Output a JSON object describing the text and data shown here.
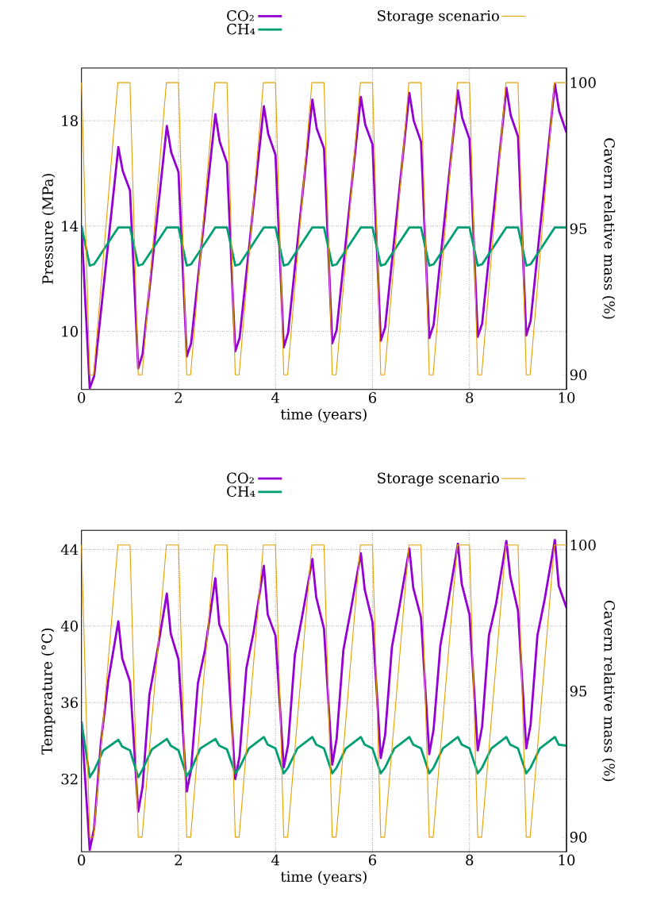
{
  "chart_data": [
    {
      "type": "line",
      "xlabel": "time (years)",
      "ylabel": "Pressure (MPa)",
      "y2label": "Cavern relative mass (%)",
      "xlim": [
        0,
        10
      ],
      "xticks": [
        0,
        2,
        4,
        6,
        8,
        10
      ],
      "ylim": [
        7.8,
        20
      ],
      "yticks": [
        10,
        14,
        18
      ],
      "y2lim": [
        89.5,
        100.5
      ],
      "y2ticks": [
        90,
        95,
        100
      ],
      "grid": true,
      "legend": "top",
      "series": [
        {
          "name": "CO₂",
          "color": "#9400d3",
          "x": [
            0,
            0.17,
            0.26,
            0.76,
            0.85,
            1,
            1.17,
            1.26,
            1.76,
            1.85,
            2,
            2.17,
            2.26,
            2.76,
            2.85,
            3,
            3.17,
            3.26,
            3.76,
            3.85,
            4,
            4.17,
            4.26,
            4.76,
            4.85,
            5,
            5.17,
            5.26,
            5.76,
            5.85,
            6,
            6.17,
            6.26,
            6.76,
            6.85,
            7,
            7.17,
            7.26,
            7.76,
            7.85,
            8,
            8.17,
            8.26,
            8.76,
            8.85,
            9,
            9.17,
            9.26,
            9.76,
            9.85,
            10
          ],
          "values": [
            14.0,
            7.85,
            8.3,
            17.0,
            16.1,
            15.35,
            8.6,
            9.15,
            17.8,
            16.8,
            16.05,
            9.05,
            9.55,
            18.25,
            17.2,
            16.4,
            9.25,
            9.75,
            18.55,
            17.5,
            16.7,
            9.4,
            9.95,
            18.8,
            17.7,
            16.95,
            9.55,
            10.05,
            18.9,
            17.85,
            17.1,
            9.65,
            10.15,
            19.05,
            18.0,
            17.2,
            9.75,
            10.25,
            19.15,
            18.1,
            17.3,
            9.8,
            10.3,
            19.25,
            18.2,
            17.4,
            9.85,
            10.4,
            19.4,
            18.35,
            17.55
          ]
        },
        {
          "name": "CH₄",
          "color": "#009e73",
          "x": [
            0,
            0.17,
            0.26,
            0.76,
            1,
            1.17,
            1.26,
            1.76,
            2,
            2.17,
            2.26,
            2.76,
            3,
            3.17,
            3.26,
            3.76,
            4,
            4.17,
            4.26,
            4.76,
            5,
            5.17,
            5.26,
            5.76,
            6,
            6.17,
            6.26,
            6.76,
            7,
            7.17,
            7.26,
            7.76,
            8,
            8.17,
            8.26,
            8.76,
            9,
            9.17,
            9.26,
            9.76,
            10
          ],
          "values": [
            14.0,
            12.5,
            12.55,
            13.95,
            13.95,
            12.5,
            12.55,
            13.95,
            13.95,
            12.5,
            12.55,
            13.95,
            13.95,
            12.5,
            12.55,
            13.95,
            13.95,
            12.5,
            12.55,
            13.95,
            13.95,
            12.5,
            12.55,
            13.95,
            13.95,
            12.5,
            12.55,
            13.95,
            13.95,
            12.5,
            12.55,
            13.95,
            13.95,
            12.5,
            12.55,
            13.95,
            13.95,
            12.5,
            12.55,
            13.95,
            13.95
          ]
        },
        {
          "name": "Storage scenario",
          "color": "#e69f00",
          "axis": "y2",
          "x": [
            0,
            0.17,
            0.25,
            0.75,
            1,
            1.17,
            1.25,
            1.75,
            2,
            2.17,
            2.25,
            2.75,
            3,
            3.17,
            3.25,
            3.75,
            4,
            4.17,
            4.25,
            4.75,
            5,
            5.17,
            5.25,
            5.75,
            6,
            6.17,
            6.25,
            6.75,
            7,
            7.17,
            7.25,
            7.75,
            8,
            8.17,
            8.25,
            8.75,
            9,
            9.17,
            9.25,
            9.75,
            10
          ],
          "values": [
            100,
            90,
            90,
            100,
            100,
            90,
            90,
            100,
            100,
            90,
            90,
            100,
            100,
            90,
            90,
            100,
            100,
            90,
            90,
            100,
            100,
            90,
            90,
            100,
            100,
            90,
            90,
            100,
            100,
            90,
            90,
            100,
            100,
            90,
            90,
            100,
            100,
            90,
            90,
            100,
            100
          ]
        }
      ]
    },
    {
      "type": "line",
      "xlabel": "time (years)",
      "ylabel": "Temperature (°C)",
      "y2label": "Cavern relative mass (%)",
      "xlim": [
        0,
        10
      ],
      "xticks": [
        0,
        2,
        4,
        6,
        8,
        10
      ],
      "ylim": [
        28.2,
        45
      ],
      "yticks": [
        32,
        36,
        40,
        44
      ],
      "y2lim": [
        89.5,
        100.5
      ],
      "y2ticks": [
        90,
        95,
        100
      ],
      "grid": true,
      "legend": "top",
      "series": [
        {
          "name": "CO₂",
          "color": "#9400d3",
          "x": [
            0,
            0.17,
            0.26,
            0.4,
            0.55,
            0.76,
            0.84,
            1,
            1.17,
            1.26,
            1.4,
            1.55,
            1.76,
            1.84,
            2,
            2.17,
            2.26,
            2.4,
            2.55,
            2.76,
            2.84,
            3,
            3.17,
            3.26,
            3.4,
            3.55,
            3.76,
            3.84,
            4,
            4.17,
            4.26,
            4.4,
            4.55,
            4.76,
            4.84,
            5,
            5.17,
            5.26,
            5.4,
            5.55,
            5.76,
            5.84,
            6,
            6.17,
            6.26,
            6.4,
            6.55,
            6.76,
            6.84,
            7,
            7.17,
            7.26,
            7.4,
            7.55,
            7.76,
            7.84,
            8,
            8.17,
            8.26,
            8.4,
            8.55,
            8.76,
            8.84,
            9,
            9.17,
            9.26,
            9.4,
            9.55,
            9.76,
            9.84,
            10
          ],
          "values": [
            35.0,
            28.3,
            29.4,
            33.9,
            37.1,
            40.25,
            38.3,
            37.1,
            30.3,
            31.6,
            36.4,
            38.5,
            41.7,
            39.6,
            38.25,
            31.35,
            32.5,
            37.0,
            38.8,
            42.5,
            40.1,
            39.0,
            32.0,
            33.2,
            37.8,
            39.7,
            43.15,
            40.6,
            39.5,
            32.6,
            33.8,
            38.5,
            40.5,
            43.5,
            41.5,
            39.85,
            32.75,
            34.1,
            38.75,
            40.8,
            43.8,
            41.9,
            40.2,
            33.1,
            34.3,
            38.9,
            40.95,
            44.05,
            42.0,
            40.45,
            33.3,
            34.6,
            39.0,
            41.1,
            44.3,
            42.2,
            40.6,
            33.5,
            34.75,
            39.5,
            41.2,
            44.45,
            42.6,
            40.8,
            33.6,
            34.85,
            39.5,
            41.4,
            44.5,
            42.1,
            40.95
          ]
        },
        {
          "name": "CH₄",
          "color": "#009e73",
          "x": [
            0,
            0.17,
            0.26,
            0.45,
            0.76,
            0.84,
            1,
            1.17,
            1.26,
            1.45,
            1.76,
            1.84,
            2,
            2.17,
            2.26,
            2.45,
            2.76,
            2.84,
            3,
            3.17,
            3.26,
            3.45,
            3.76,
            3.84,
            4,
            4.17,
            4.26,
            4.45,
            4.76,
            4.84,
            5,
            5.17,
            5.26,
            5.45,
            5.76,
            5.84,
            6,
            6.17,
            6.26,
            6.45,
            6.76,
            6.84,
            7,
            7.17,
            7.26,
            7.45,
            7.76,
            7.84,
            8,
            8.17,
            8.26,
            8.45,
            8.76,
            8.84,
            9,
            9.17,
            9.26,
            9.45,
            9.76,
            9.84,
            10
          ],
          "values": [
            35.0,
            32.1,
            32.45,
            33.5,
            34.05,
            33.7,
            33.5,
            32.1,
            32.5,
            33.55,
            34.1,
            33.75,
            33.5,
            32.15,
            32.5,
            33.6,
            34.1,
            33.75,
            33.55,
            32.3,
            32.6,
            33.6,
            34.2,
            33.8,
            33.6,
            32.3,
            32.6,
            33.6,
            34.2,
            33.8,
            33.6,
            32.3,
            32.6,
            33.6,
            34.2,
            33.8,
            33.6,
            32.3,
            32.6,
            33.6,
            34.2,
            33.8,
            33.6,
            32.3,
            32.6,
            33.6,
            34.2,
            33.8,
            33.6,
            32.3,
            32.6,
            33.6,
            34.2,
            33.8,
            33.6,
            32.3,
            32.6,
            33.6,
            34.2,
            33.8,
            33.75
          ]
        },
        {
          "name": "Storage scenario",
          "color": "#e69f00",
          "axis": "y2",
          "x": [
            0,
            0.17,
            0.25,
            0.75,
            1,
            1.17,
            1.25,
            1.75,
            2,
            2.17,
            2.25,
            2.75,
            3,
            3.17,
            3.25,
            3.75,
            4,
            4.17,
            4.25,
            4.75,
            5,
            5.17,
            5.25,
            5.75,
            6,
            6.17,
            6.25,
            6.75,
            7,
            7.17,
            7.25,
            7.75,
            8,
            8.17,
            8.25,
            8.75,
            9,
            9.17,
            9.25,
            9.75,
            10
          ],
          "values": [
            100,
            90,
            90,
            100,
            100,
            90,
            90,
            100,
            100,
            90,
            90,
            100,
            100,
            90,
            90,
            100,
            100,
            90,
            90,
            100,
            100,
            90,
            90,
            100,
            100,
            90,
            90,
            100,
            100,
            90,
            90,
            100,
            100,
            90,
            90,
            100,
            100,
            90,
            90,
            100,
            100
          ]
        }
      ]
    }
  ]
}
